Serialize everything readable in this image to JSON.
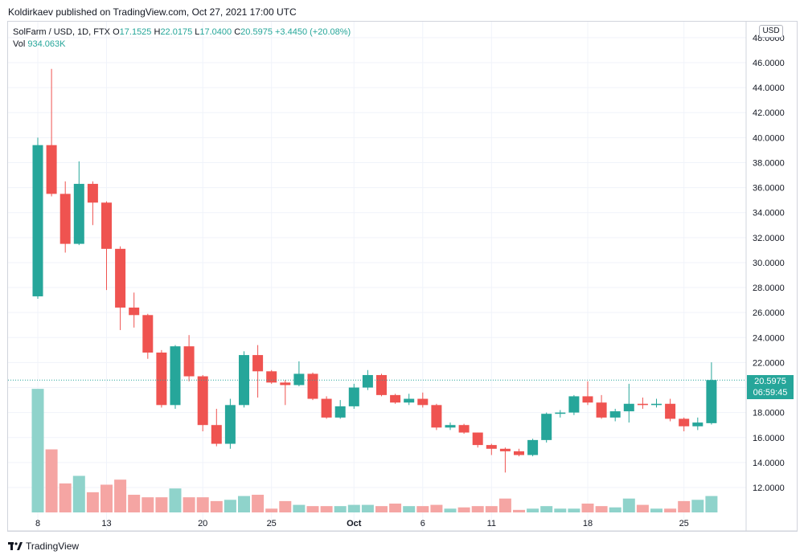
{
  "publisher_line": "Koldirkaev published on TradingView.com, Oct 27, 2021 17:00 UTC",
  "legend": {
    "symbol": "SolFarm / USD, 1D, FTX",
    "o_label": "O",
    "o_value": "17.1525",
    "h_label": "H",
    "h_value": "22.0175",
    "l_label": "L",
    "l_value": "17.0400",
    "c_label": "C",
    "c_value": "20.5975",
    "change": "+3.4450 (+20.08%)",
    "vol_label": "Vol",
    "vol_value": "934.063K"
  },
  "currency": "USD",
  "last_price_tag": {
    "price": "20.5975",
    "countdown": "06:59:45"
  },
  "footer": {
    "brand": "TradingView"
  },
  "colors": {
    "up": "#26a69a",
    "down": "#ef5350",
    "up_vol": "#8fd3cb",
    "down_vol": "#f5a5a3",
    "grid": "#f0f3fa"
  },
  "chart_data": {
    "type": "candlestick",
    "y_axis": {
      "min": 10,
      "max": 48,
      "ticks": [
        "12.0000",
        "14.0000",
        "16.0000",
        "18.0000",
        "20.0000",
        "22.0000",
        "24.0000",
        "26.0000",
        "28.0000",
        "30.0000",
        "32.0000",
        "34.0000",
        "36.0000",
        "38.0000",
        "40.0000",
        "42.0000",
        "44.0000",
        "46.0000",
        "48.0000"
      ]
    },
    "x_labels": [
      {
        "label": "8",
        "index": 0
      },
      {
        "label": "13",
        "index": 5
      },
      {
        "label": "20",
        "index": 12
      },
      {
        "label": "25",
        "index": 17
      },
      {
        "label": "Oct",
        "index": 23
      },
      {
        "label": "6",
        "index": 28
      },
      {
        "label": "11",
        "index": 33
      },
      {
        "label": "18",
        "index": 40
      },
      {
        "label": "25",
        "index": 47
      }
    ],
    "candles": [
      {
        "o": 27.3,
        "h": 40.0,
        "l": 27.1,
        "c": 39.4,
        "v": 9.8
      },
      {
        "o": 39.4,
        "h": 45.5,
        "l": 35.3,
        "c": 35.5,
        "v": 5.0
      },
      {
        "o": 35.5,
        "h": 36.5,
        "l": 30.8,
        "c": 31.5,
        "v": 2.3
      },
      {
        "o": 31.5,
        "h": 38.1,
        "l": 31.4,
        "c": 36.3,
        "v": 2.9
      },
      {
        "o": 36.3,
        "h": 36.5,
        "l": 33.0,
        "c": 34.8,
        "v": 1.6
      },
      {
        "o": 34.8,
        "h": 34.9,
        "l": 27.8,
        "c": 31.1,
        "v": 2.2
      },
      {
        "o": 31.1,
        "h": 31.3,
        "l": 24.6,
        "c": 26.4,
        "v": 2.6
      },
      {
        "o": 26.4,
        "h": 27.6,
        "l": 24.8,
        "c": 25.8,
        "v": 1.4
      },
      {
        "o": 25.8,
        "h": 25.9,
        "l": 22.3,
        "c": 22.8,
        "v": 1.2
      },
      {
        "o": 22.8,
        "h": 23.0,
        "l": 18.4,
        "c": 18.6,
        "v": 1.2
      },
      {
        "o": 18.6,
        "h": 23.4,
        "l": 18.3,
        "c": 23.3,
        "v": 1.9
      },
      {
        "o": 23.3,
        "h": 24.2,
        "l": 20.5,
        "c": 20.9,
        "v": 1.2
      },
      {
        "o": 20.9,
        "h": 21.0,
        "l": 16.5,
        "c": 17.0,
        "v": 1.2
      },
      {
        "o": 17.0,
        "h": 18.3,
        "l": 15.3,
        "c": 15.5,
        "v": 0.9
      },
      {
        "o": 15.5,
        "h": 19.1,
        "l": 15.1,
        "c": 18.6,
        "v": 1.0
      },
      {
        "o": 18.6,
        "h": 22.9,
        "l": 18.4,
        "c": 22.6,
        "v": 1.3
      },
      {
        "o": 22.6,
        "h": 23.4,
        "l": 19.2,
        "c": 21.3,
        "v": 1.4
      },
      {
        "o": 21.3,
        "h": 21.4,
        "l": 20.3,
        "c": 20.4,
        "v": 0.3
      },
      {
        "o": 20.4,
        "h": 20.6,
        "l": 18.6,
        "c": 20.2,
        "v": 0.9
      },
      {
        "o": 20.2,
        "h": 22.1,
        "l": 20.1,
        "c": 21.1,
        "v": 0.6
      },
      {
        "o": 21.1,
        "h": 21.2,
        "l": 19.0,
        "c": 19.1,
        "v": 0.5
      },
      {
        "o": 19.1,
        "h": 19.3,
        "l": 17.5,
        "c": 17.6,
        "v": 0.5
      },
      {
        "o": 17.6,
        "h": 19.0,
        "l": 17.5,
        "c": 18.5,
        "v": 0.5
      },
      {
        "o": 18.5,
        "h": 20.3,
        "l": 18.3,
        "c": 20.0,
        "v": 0.6
      },
      {
        "o": 20.0,
        "h": 21.4,
        "l": 19.8,
        "c": 21.0,
        "v": 0.6
      },
      {
        "o": 21.0,
        "h": 21.1,
        "l": 19.3,
        "c": 19.4,
        "v": 0.5
      },
      {
        "o": 19.4,
        "h": 19.5,
        "l": 18.7,
        "c": 18.8,
        "v": 0.7
      },
      {
        "o": 18.8,
        "h": 19.5,
        "l": 18.6,
        "c": 19.1,
        "v": 0.5
      },
      {
        "o": 19.1,
        "h": 19.6,
        "l": 18.4,
        "c": 18.6,
        "v": 0.5
      },
      {
        "o": 18.6,
        "h": 18.7,
        "l": 16.6,
        "c": 16.8,
        "v": 0.6
      },
      {
        "o": 16.8,
        "h": 17.2,
        "l": 16.6,
        "c": 17.0,
        "v": 0.3
      },
      {
        "o": 17.0,
        "h": 17.1,
        "l": 16.3,
        "c": 16.4,
        "v": 0.4
      },
      {
        "o": 16.4,
        "h": 16.4,
        "l": 15.2,
        "c": 15.4,
        "v": 0.5
      },
      {
        "o": 15.4,
        "h": 15.5,
        "l": 14.6,
        "c": 15.1,
        "v": 0.5
      },
      {
        "o": 15.1,
        "h": 15.2,
        "l": 13.2,
        "c": 14.9,
        "v": 1.1
      },
      {
        "o": 14.9,
        "h": 15.1,
        "l": 14.5,
        "c": 14.6,
        "v": 0.2
      },
      {
        "o": 14.6,
        "h": 15.9,
        "l": 14.5,
        "c": 15.8,
        "v": 0.3
      },
      {
        "o": 15.8,
        "h": 18.0,
        "l": 15.6,
        "c": 17.9,
        "v": 0.5
      },
      {
        "o": 17.9,
        "h": 18.2,
        "l": 17.6,
        "c": 18.0,
        "v": 0.3
      },
      {
        "o": 18.0,
        "h": 19.4,
        "l": 17.8,
        "c": 19.3,
        "v": 0.3
      },
      {
        "o": 19.3,
        "h": 20.5,
        "l": 18.6,
        "c": 18.8,
        "v": 0.7
      },
      {
        "o": 18.8,
        "h": 19.4,
        "l": 17.5,
        "c": 17.6,
        "v": 0.5
      },
      {
        "o": 17.6,
        "h": 18.3,
        "l": 17.3,
        "c": 18.1,
        "v": 0.4
      },
      {
        "o": 18.1,
        "h": 20.3,
        "l": 17.2,
        "c": 18.7,
        "v": 1.1
      },
      {
        "o": 18.7,
        "h": 19.2,
        "l": 18.3,
        "c": 18.6,
        "v": 0.6
      },
      {
        "o": 18.6,
        "h": 19.1,
        "l": 18.4,
        "c": 18.7,
        "v": 0.3
      },
      {
        "o": 18.7,
        "h": 19.1,
        "l": 17.3,
        "c": 17.5,
        "v": 0.3
      },
      {
        "o": 17.5,
        "h": 17.6,
        "l": 16.5,
        "c": 16.9,
        "v": 0.9
      },
      {
        "o": 16.9,
        "h": 17.6,
        "l": 16.6,
        "c": 17.2,
        "v": 1.0
      },
      {
        "o": 17.15,
        "h": 22.02,
        "l": 17.04,
        "c": 20.6,
        "v": 1.3
      }
    ]
  }
}
